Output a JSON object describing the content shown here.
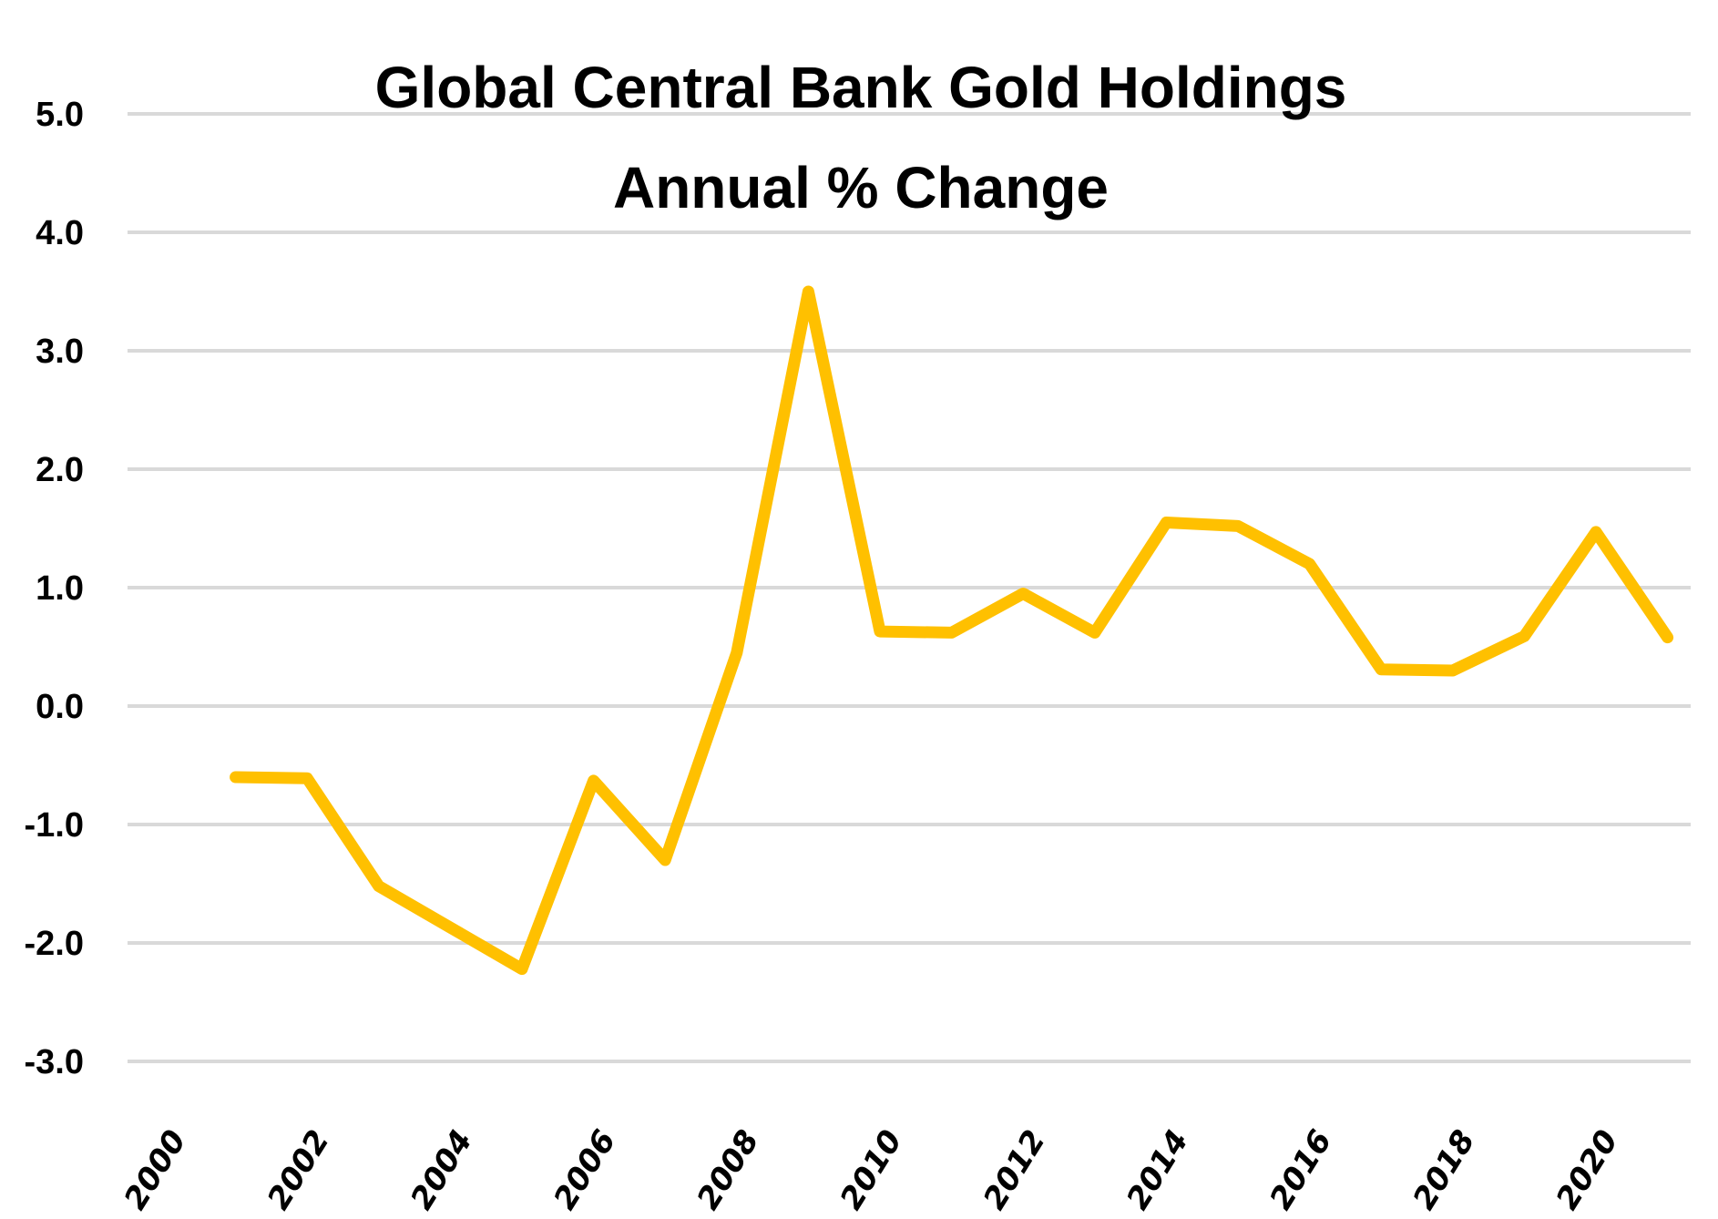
{
  "chart_data": {
    "type": "line",
    "title": "Global Central Bank Gold Holdings",
    "subtitle": "Annual % Change",
    "xlabel": "",
    "ylabel": "",
    "ylim": [
      -3.0,
      5.0
    ],
    "xlim": [
      2000,
      2021
    ],
    "grid": true,
    "legend": "none",
    "y_ticks": [
      "5.0",
      "4.0",
      "3.0",
      "2.0",
      "1.0",
      "0.0",
      "-1.0",
      "-2.0",
      "-3.0"
    ],
    "y_tick_values": [
      5,
      4,
      3,
      2,
      1,
      0,
      -1,
      -2,
      -3
    ],
    "x_ticks": [
      "2000",
      "2002",
      "2004",
      "2006",
      "2008",
      "2010",
      "2012",
      "2014",
      "2016",
      "2018",
      "2020"
    ],
    "x_tick_values": [
      2000,
      2002,
      2004,
      2006,
      2008,
      2010,
      2012,
      2014,
      2016,
      2018,
      2020
    ],
    "x": [
      2001,
      2002,
      2003,
      2004,
      2005,
      2006,
      2007,
      2008,
      2009,
      2010,
      2011,
      2012,
      2013,
      2014,
      2015,
      2016,
      2017,
      2018,
      2019,
      2020,
      2021
    ],
    "series": [
      {
        "name": "Annual % Change",
        "color": "#FFC000",
        "values": [
          -0.6,
          -0.61,
          -1.52,
          -1.87,
          -2.22,
          -0.63,
          -1.3,
          0.45,
          3.5,
          0.63,
          0.62,
          0.95,
          0.62,
          1.55,
          1.52,
          1.2,
          0.31,
          0.3,
          0.59,
          1.47,
          0.58
        ]
      }
    ]
  },
  "colors": {
    "line": "#FFC000",
    "grid": "#D9D9D9",
    "text": "#000000",
    "background": "#FFFFFF"
  }
}
